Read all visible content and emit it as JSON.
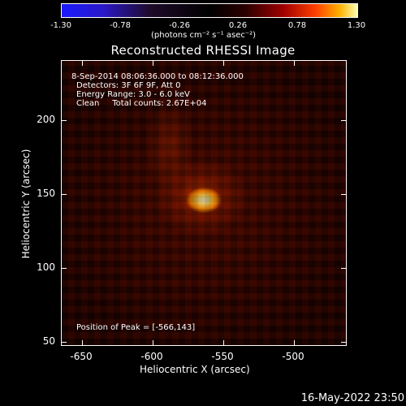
{
  "colorbar": {
    "ticks": [
      "-1.30",
      "-0.78",
      "-0.26",
      "0.26",
      "0.78",
      "1.30"
    ],
    "unit": "(photons cm⁻² s⁻¹ asec⁻²)"
  },
  "title": "Reconstructed RHESSI Image",
  "info": {
    "time": "8-Sep-2014 08:06:36.000 to 08:12:36.000",
    "detectors": "Detectors: 3F 6F 9F, Att 0",
    "energy": "Energy Range: 3.0 - 6.0 keV",
    "clean": "Clean     Total counts: 2.67E+04",
    "peak": "Position of Peak = [-566,143]"
  },
  "axes": {
    "x_ticks": [
      "-650",
      "-600",
      "-550",
      "-500"
    ],
    "y_ticks": [
      "200",
      "150",
      "100",
      "50"
    ],
    "xlabel": "Heliocentric X (arcsec)",
    "ylabel": "Heliocentric Y (arcsec)"
  },
  "footer": "16-May-2022 23:50"
}
